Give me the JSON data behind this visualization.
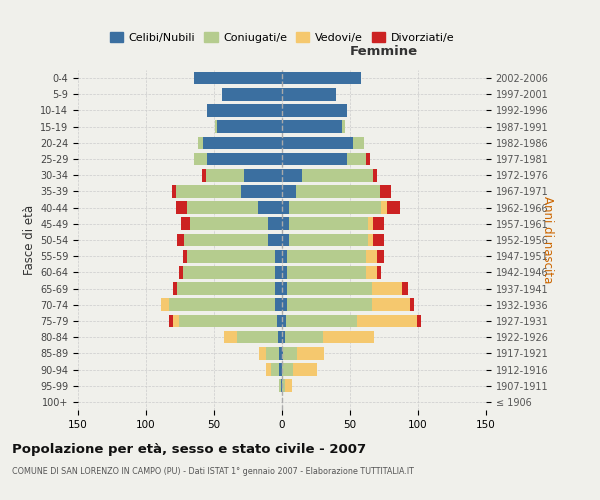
{
  "age_groups": [
    "100+",
    "95-99",
    "90-94",
    "85-89",
    "80-84",
    "75-79",
    "70-74",
    "65-69",
    "60-64",
    "55-59",
    "50-54",
    "45-49",
    "40-44",
    "35-39",
    "30-34",
    "25-29",
    "20-24",
    "15-19",
    "10-14",
    "5-9",
    "0-4"
  ],
  "birth_years": [
    "≤ 1906",
    "1907-1911",
    "1912-1916",
    "1917-1921",
    "1922-1926",
    "1927-1931",
    "1932-1936",
    "1937-1941",
    "1942-1946",
    "1947-1951",
    "1952-1956",
    "1957-1961",
    "1962-1966",
    "1967-1971",
    "1972-1976",
    "1977-1981",
    "1982-1986",
    "1987-1991",
    "1992-1996",
    "1997-2001",
    "2002-2006"
  ],
  "males": {
    "celibi": [
      0,
      1,
      2,
      2,
      3,
      4,
      5,
      5,
      5,
      5,
      10,
      10,
      18,
      30,
      28,
      55,
      58,
      48,
      55,
      44,
      65
    ],
    "coniugati": [
      0,
      1,
      6,
      10,
      30,
      72,
      78,
      72,
      68,
      65,
      62,
      58,
      52,
      48,
      28,
      10,
      4,
      1,
      0,
      0,
      0
    ],
    "vedovi": [
      0,
      0,
      4,
      5,
      10,
      4,
      6,
      0,
      0,
      0,
      0,
      0,
      0,
      0,
      0,
      0,
      0,
      0,
      0,
      0,
      0
    ],
    "divorziati": [
      0,
      0,
      0,
      0,
      0,
      3,
      0,
      3,
      3,
      3,
      5,
      6,
      8,
      3,
      3,
      0,
      0,
      0,
      0,
      0,
      0
    ]
  },
  "females": {
    "nubili": [
      0,
      0,
      0,
      1,
      2,
      3,
      4,
      4,
      4,
      4,
      5,
      5,
      5,
      10,
      15,
      48,
      52,
      44,
      48,
      40,
      58
    ],
    "coniugate": [
      0,
      2,
      8,
      10,
      28,
      52,
      62,
      62,
      58,
      58,
      58,
      58,
      68,
      62,
      52,
      14,
      8,
      2,
      0,
      0,
      0
    ],
    "vedove": [
      0,
      5,
      18,
      20,
      38,
      44,
      28,
      22,
      8,
      8,
      4,
      4,
      4,
      0,
      0,
      0,
      0,
      0,
      0,
      0,
      0
    ],
    "divorziate": [
      0,
      0,
      0,
      0,
      0,
      3,
      3,
      5,
      3,
      5,
      8,
      8,
      10,
      8,
      3,
      3,
      0,
      0,
      0,
      0,
      0
    ]
  },
  "colors": {
    "celibi_nubili": "#3b6fa0",
    "coniugati": "#b5cc8e",
    "vedovi": "#f5c86e",
    "divorziati": "#cc2222"
  },
  "title": "Popolazione per età, sesso e stato civile - 2007",
  "subtitle": "COMUNE DI SAN LORENZO IN CAMPO (PU) - Dati ISTAT 1° gennaio 2007 - Elaborazione TUTTITALIA.IT",
  "xlabel_right": "Femmine",
  "ylabel_left": "Fasce di età",
  "ylabel_right": "Anni di nascita",
  "xlim": 150,
  "legend_labels": [
    "Celibi/Nubili",
    "Coniugati/e",
    "Vedovi/e",
    "Divorziati/e"
  ],
  "background_color": "#f0f0eb",
  "bar_height": 0.78
}
